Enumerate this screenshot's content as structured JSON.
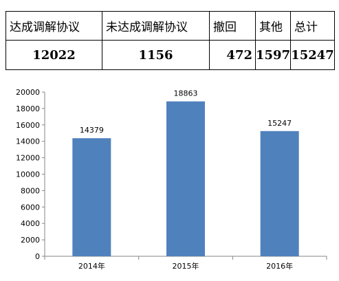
{
  "table": {
    "headers": [
      "达成调解协议",
      "未达成调解协议",
      "撤回",
      "其他",
      "总计"
    ],
    "values": [
      "12022",
      "1156",
      "472",
      "1597",
      "15247"
    ]
  },
  "chart_data": {
    "type": "bar",
    "categories": [
      "2014年",
      "2015年",
      "2016年"
    ],
    "values": [
      14379,
      18863,
      15247
    ],
    "data_labels": [
      "14379",
      "18863",
      "15247"
    ],
    "ylim": [
      0,
      20000
    ],
    "yticks": [
      0,
      2000,
      4000,
      6000,
      8000,
      10000,
      12000,
      14000,
      16000,
      18000,
      20000
    ],
    "ytick_labels": [
      "0",
      "2000",
      "4000",
      "6000",
      "8000",
      "10000",
      "12000",
      "14000",
      "16000",
      "18000",
      "20000"
    ],
    "grid": false,
    "legend": "none",
    "bar_color": "#4F81BD",
    "axis_color": "#868686"
  }
}
